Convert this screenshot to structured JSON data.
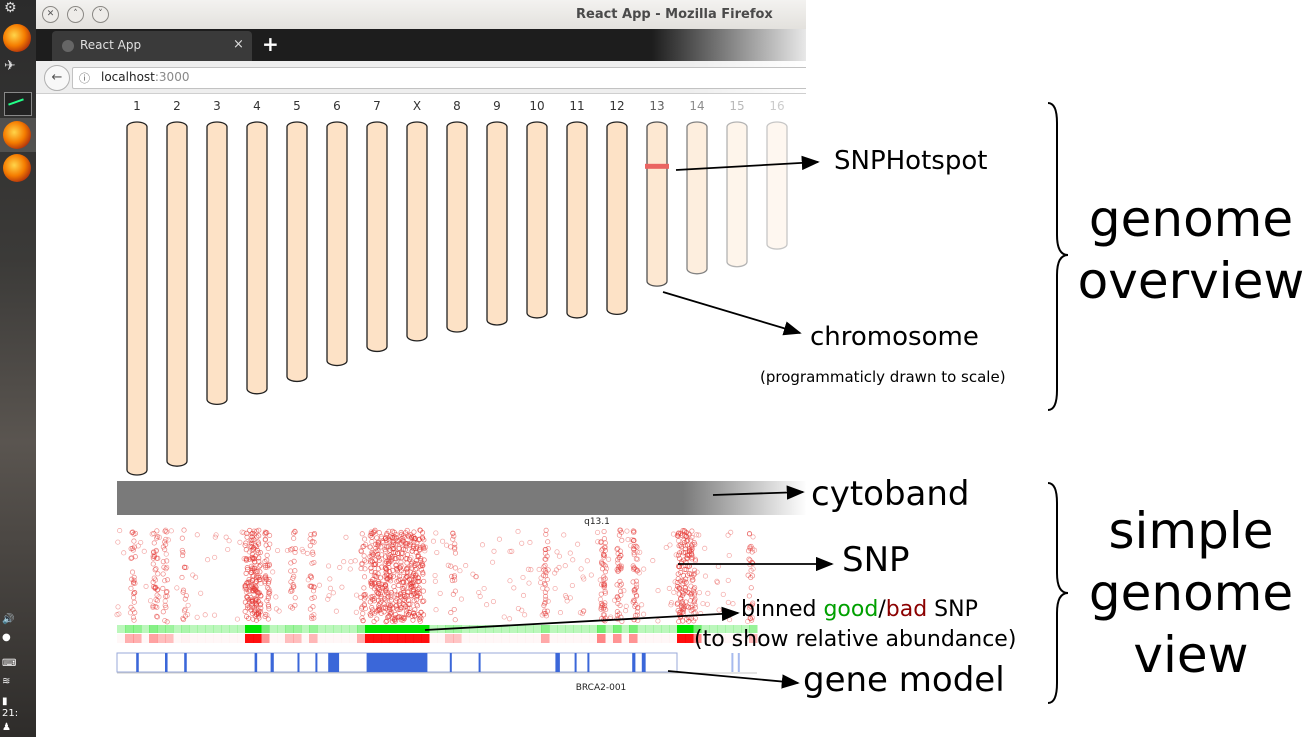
{
  "window": {
    "title": "React App - Mozilla Firefox",
    "tab_label": "React App",
    "url_host": "localhost",
    "url_port": ":3000"
  },
  "launcher": {
    "clock": "21:"
  },
  "chart_data": {
    "type": "diagram",
    "chromosomes": [
      {
        "label": "1",
        "length": 1.0
      },
      {
        "label": "2",
        "length": 0.975
      },
      {
        "label": "3",
        "length": 0.8
      },
      {
        "label": "4",
        "length": 0.77
      },
      {
        "label": "5",
        "length": 0.735
      },
      {
        "label": "6",
        "length": 0.69
      },
      {
        "label": "7",
        "length": 0.65
      },
      {
        "label": "X",
        "length": 0.62
      },
      {
        "label": "8",
        "length": 0.595
      },
      {
        "label": "9",
        "length": 0.575
      },
      {
        "label": "10",
        "length": 0.555
      },
      {
        "label": "11",
        "length": 0.555
      },
      {
        "label": "12",
        "length": 0.545
      },
      {
        "label": "13",
        "length": 0.465
      },
      {
        "label": "14",
        "length": 0.43
      },
      {
        "label": "15",
        "length": 0.41
      },
      {
        "label": "16",
        "length": 0.36
      }
    ],
    "hotspot": {
      "chromosome": "13",
      "position": 0.27
    },
    "cytoband_label": "q13.1",
    "gene_label": "BRCA2-001",
    "snp_columns": [
      {
        "pos": 0.025,
        "density": 0.5
      },
      {
        "pos": 0.06,
        "density": 0.6
      },
      {
        "pos": 0.075,
        "density": 0.4
      },
      {
        "pos": 0.105,
        "density": 0.3
      },
      {
        "pos": 0.215,
        "density": 0.55
      },
      {
        "pos": 0.235,
        "density": 0.7
      },
      {
        "pos": 0.275,
        "density": 0.4
      },
      {
        "pos": 0.305,
        "density": 0.45
      },
      {
        "pos": 0.385,
        "density": 0.5
      },
      {
        "pos": 0.425,
        "density": 0.3
      },
      {
        "pos": 0.525,
        "density": 0.35
      },
      {
        "pos": 0.67,
        "density": 0.55
      },
      {
        "pos": 0.76,
        "density": 0.8
      },
      {
        "pos": 0.785,
        "density": 0.7
      },
      {
        "pos": 0.81,
        "density": 0.7
      },
      {
        "pos": 0.9,
        "density": 0.8
      },
      {
        "pos": 0.99,
        "density": 0.45
      }
    ],
    "snp_blocks": [
      {
        "start": 0.2,
        "end": 0.225
      },
      {
        "start": 0.395,
        "end": 0.48
      },
      {
        "start": 0.875,
        "end": 0.895
      }
    ],
    "gene_exons": [
      {
        "start": 0.03,
        "end": 0.034
      },
      {
        "start": 0.075,
        "end": 0.079
      },
      {
        "start": 0.105,
        "end": 0.109
      },
      {
        "start": 0.215,
        "end": 0.219
      },
      {
        "start": 0.24,
        "end": 0.245
      },
      {
        "start": 0.282,
        "end": 0.285
      },
      {
        "start": 0.31,
        "end": 0.313
      },
      {
        "start": 0.33,
        "end": 0.347
      },
      {
        "start": 0.39,
        "end": 0.485
      },
      {
        "start": 0.52,
        "end": 0.523
      },
      {
        "start": 0.565,
        "end": 0.568
      },
      {
        "start": 0.685,
        "end": 0.692
      },
      {
        "start": 0.715,
        "end": 0.718
      },
      {
        "start": 0.735,
        "end": 0.738
      },
      {
        "start": 0.805,
        "end": 0.81
      },
      {
        "start": 0.82,
        "end": 0.826
      },
      {
        "start": 0.96,
        "end": 0.962
      },
      {
        "start": 0.97,
        "end": 0.972
      }
    ]
  },
  "annotations": {
    "snphotspot": "SNPHotspot",
    "chromosome": "chromosome",
    "chromosome_sub": "(programmaticly drawn to scale)",
    "cytoband": "cytoband",
    "snp": "SNP",
    "binned_pre": "binned ",
    "binned_good": "good",
    "binned_slash": "/",
    "binned_bad": "bad",
    "binned_post": " SNP",
    "binned_sub": "(to show relative abundance)",
    "gene_model": "gene model",
    "genome_overview_line1": "genome",
    "genome_overview_line2": "overview",
    "simple_view_line1": "simple",
    "simple_view_line2": "genome",
    "simple_view_line3": "view"
  },
  "colors": {
    "chromosome_fill": "#fde2c6",
    "hotspot": "#e53935",
    "cytoband": "#7a7a7a",
    "snp": "#e53935",
    "good": "#00a000",
    "bad": "#8b0000",
    "gene": "#3b67d9"
  }
}
